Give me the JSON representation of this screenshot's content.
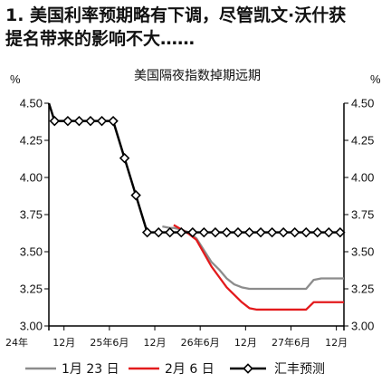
{
  "heading": {
    "line1": "1. 美国利率预期略有下调，尽管凯文·沃什获",
    "line2": "提名带来的影响不大……"
  },
  "chart_data": {
    "type": "line",
    "title": "美国隔夜指数掉期远期",
    "y_unit_left": "%",
    "y_unit_right": "%",
    "ylim": [
      3.0,
      4.5
    ],
    "yticks": [
      3.0,
      3.25,
      3.5,
      3.75,
      4.0,
      4.25,
      4.5
    ],
    "ytick_labels": [
      "3.00",
      "3.25",
      "3.50",
      "3.75",
      "4.00",
      "4.25",
      "4.50"
    ],
    "x_month_index_range": [
      0,
      39
    ],
    "x_ticks": [
      {
        "m": 0,
        "label": "24年"
      },
      {
        "m": 2,
        "label": "12月"
      },
      {
        "m": 8,
        "label": "25年6月"
      },
      {
        "m": 14,
        "label": "12月"
      },
      {
        "m": 20,
        "label": "26年6月"
      },
      {
        "m": 26,
        "label": "12月"
      },
      {
        "m": 32,
        "label": "27年6月"
      },
      {
        "m": 38,
        "label": "12月"
      }
    ],
    "grid": false,
    "legend_position": "bottom",
    "series": [
      {
        "name": "1月 23 日",
        "color": "#8c8c8c",
        "style": "line",
        "x": [
          15.0,
          16.0,
          16.5,
          17.5,
          18.5,
          19.5,
          20.5,
          21.5,
          22.5,
          23.5,
          24.5,
          25.5,
          26.5,
          27.5,
          28.5,
          29.5,
          30.5,
          31.5,
          32.5,
          33.0,
          34.0,
          35.0,
          36.0,
          37.0,
          38.0,
          39.0
        ],
        "values": [
          3.67,
          3.66,
          3.66,
          3.65,
          3.63,
          3.59,
          3.51,
          3.43,
          3.38,
          3.32,
          3.28,
          3.26,
          3.25,
          3.25,
          3.25,
          3.25,
          3.25,
          3.25,
          3.25,
          3.25,
          3.25,
          3.31,
          3.32,
          3.32,
          3.32,
          3.32
        ]
      },
      {
        "name": "2月 6 日",
        "color": "#e31a1c",
        "style": "line",
        "x": [
          16.5,
          17.5,
          18.5,
          19.5,
          20.5,
          21.5,
          22.5,
          23.5,
          24.5,
          25.5,
          26.5,
          27.5,
          28.5,
          29.5,
          30.5,
          31.5,
          32.5,
          33.0,
          34.0,
          35.0,
          36.0,
          37.0,
          38.0,
          39.0
        ],
        "values": [
          3.68,
          3.65,
          3.62,
          3.58,
          3.49,
          3.4,
          3.33,
          3.26,
          3.21,
          3.16,
          3.12,
          3.11,
          3.11,
          3.11,
          3.11,
          3.11,
          3.11,
          3.11,
          3.11,
          3.16,
          3.16,
          3.16,
          3.16,
          3.16
        ]
      },
      {
        "name": "汇丰预测",
        "color": "#000000",
        "style": "line-diamond",
        "x": [
          0,
          0.75,
          2.5,
          4.0,
          5.5,
          7.0,
          8.5,
          10.0,
          11.5,
          13.0,
          14.5,
          16.0,
          17.5,
          19.0,
          20.5,
          22.0,
          23.5,
          25.0,
          26.5,
          28.0,
          29.5,
          31.0,
          32.5,
          34.0,
          35.5,
          37.0,
          38.5
        ],
        "values": [
          4.5,
          4.38,
          4.38,
          4.38,
          4.38,
          4.38,
          4.38,
          4.13,
          3.88,
          3.63,
          3.63,
          3.63,
          3.63,
          3.63,
          3.63,
          3.63,
          3.63,
          3.63,
          3.63,
          3.63,
          3.63,
          3.63,
          3.63,
          3.63,
          3.63,
          3.63,
          3.63
        ],
        "markers": [
          false,
          true,
          true,
          true,
          true,
          true,
          true,
          true,
          true,
          true,
          true,
          true,
          true,
          true,
          true,
          true,
          true,
          true,
          true,
          true,
          true,
          true,
          true,
          true,
          true,
          true,
          true
        ]
      }
    ]
  }
}
